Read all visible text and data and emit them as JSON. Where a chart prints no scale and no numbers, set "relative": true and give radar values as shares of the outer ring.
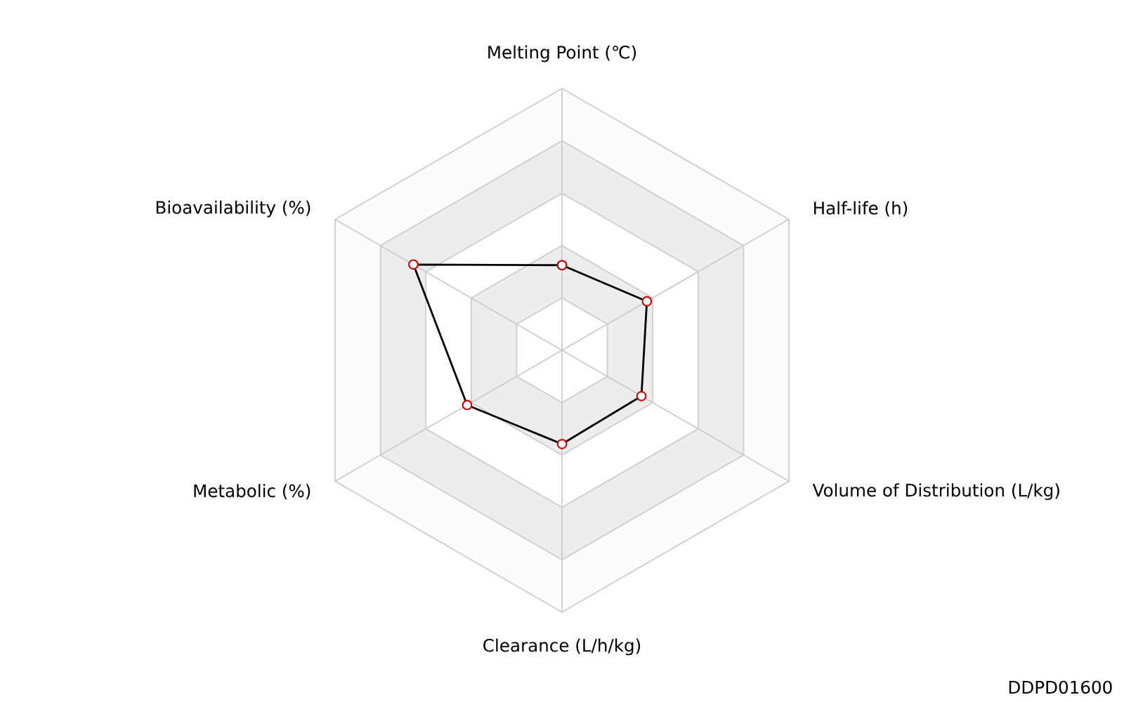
{
  "chart_data": {
    "type": "radar",
    "relative": true,
    "grid": true,
    "marker": "circle",
    "categories": [
      "Melting Point (℃)",
      "Half-life (h)",
      "Volume of Distribution (L/kg)",
      "Clearance (L/h/kg)",
      "Metabolic (%)",
      "Bioavailability (%)"
    ],
    "series": [
      {
        "color": "#000000",
        "values": [
          0.325,
          0.374,
          0.35,
          0.358,
          0.418,
          0.655
        ]
      }
    ],
    "annotations": [
      "DDPD01600"
    ]
  }
}
